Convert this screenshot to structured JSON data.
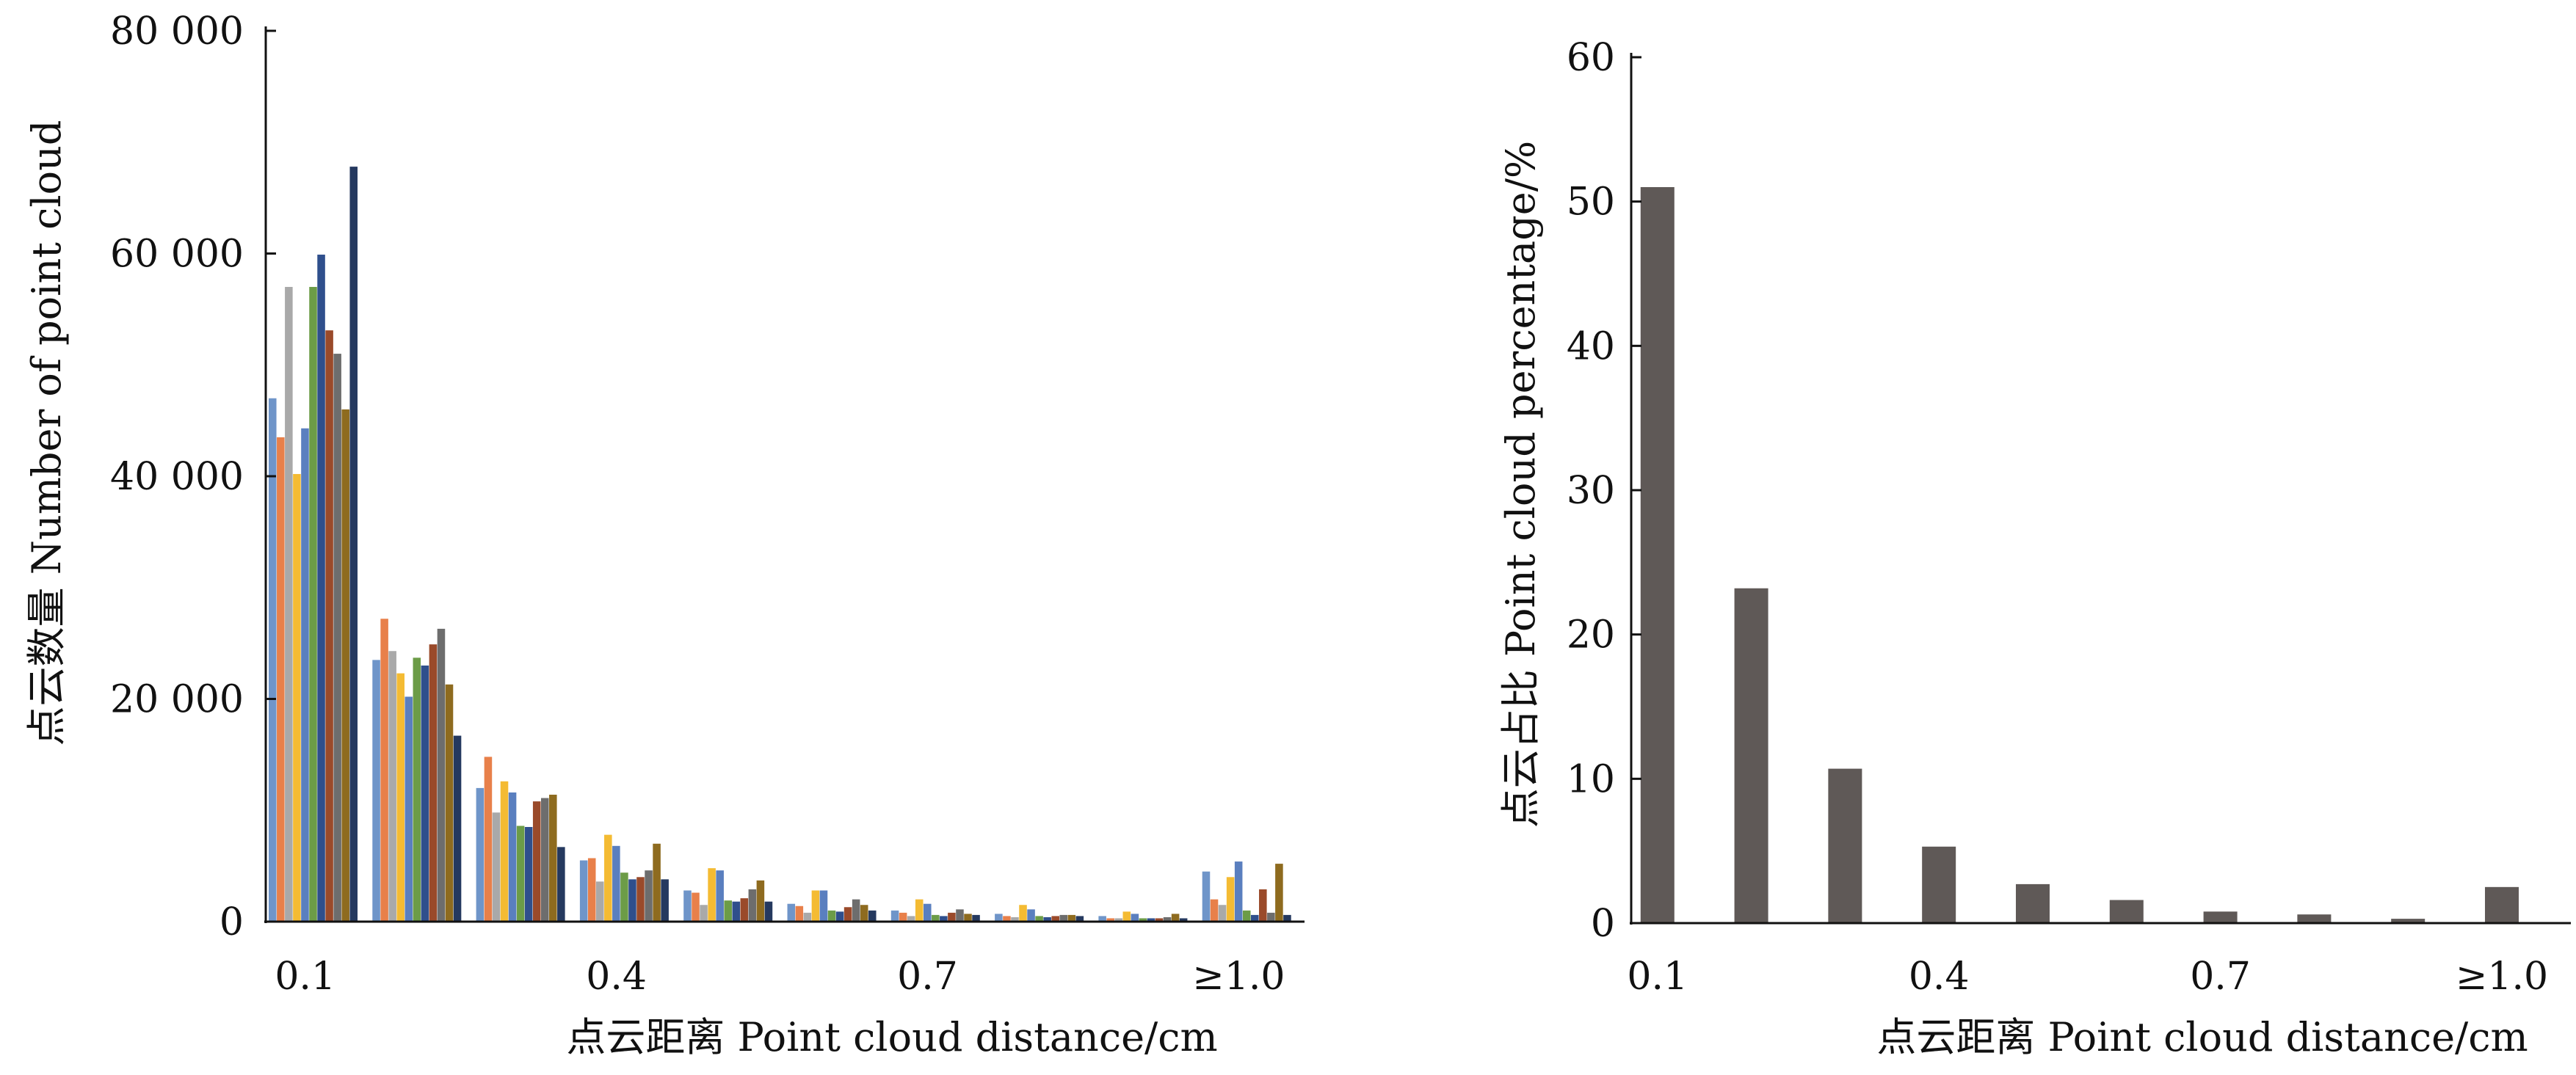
{
  "chart_data": [
    {
      "type": "bar",
      "categories": [
        "0.1",
        "0.2",
        "0.3",
        "0.4",
        "0.5",
        "0.6",
        "0.7",
        "0.8",
        "0.9",
        "≥1.0"
      ],
      "x_tick_labels": [
        "0.1",
        "0.4",
        "0.7",
        "≥1.0"
      ],
      "xlabel": "点云距离 Point cloud distance/cm",
      "ylabel": "点云数量 Number of point cloud",
      "ylim": [
        0,
        80000
      ],
      "y_ticks": [
        0,
        20000,
        40000,
        60000,
        80000
      ],
      "y_tick_labels": [
        "0",
        "20 000",
        "40 000",
        "60 000",
        "80 000"
      ],
      "grid": false,
      "series": [
        {
          "color": "#6f95c9",
          "values": [
            47000,
            23500,
            12000,
            5500,
            2800,
            1600,
            1000,
            700,
            500,
            4500
          ]
        },
        {
          "color": "#e8804a",
          "values": [
            43500,
            27200,
            14800,
            5700,
            2600,
            1400,
            800,
            500,
            300,
            2000
          ]
        },
        {
          "color": "#a9a9a9",
          "values": [
            57000,
            24300,
            9800,
            3600,
            1500,
            800,
            500,
            400,
            300,
            1500
          ]
        },
        {
          "color": "#f4bb33",
          "values": [
            40200,
            22300,
            12600,
            7800,
            4800,
            2800,
            2000,
            1500,
            900,
            4000
          ]
        },
        {
          "color": "#5a7fbf",
          "values": [
            44300,
            20200,
            11600,
            6800,
            4600,
            2800,
            1600,
            1100,
            700,
            5400
          ]
        },
        {
          "color": "#6c9c47",
          "values": [
            57000,
            23700,
            8600,
            4400,
            1900,
            1000,
            600,
            500,
            300,
            1000
          ]
        },
        {
          "color": "#2f4f8c",
          "values": [
            59900,
            23000,
            8500,
            3800,
            1800,
            900,
            500,
            400,
            300,
            600
          ]
        },
        {
          "color": "#9a4a2a",
          "values": [
            53100,
            24900,
            10800,
            4000,
            2100,
            1300,
            800,
            500,
            300,
            2900
          ]
        },
        {
          "color": "#6d6d6d",
          "values": [
            51000,
            26300,
            11100,
            4600,
            2900,
            2000,
            1100,
            600,
            400,
            800
          ]
        },
        {
          "color": "#8e6b1f",
          "values": [
            46000,
            21300,
            11400,
            7000,
            3700,
            1500,
            700,
            600,
            700,
            5200
          ]
        },
        {
          "color": "#25395f",
          "values": [
            67800,
            16700,
            6700,
            3800,
            1800,
            1000,
            600,
            500,
            300,
            600
          ]
        }
      ]
    },
    {
      "type": "bar",
      "categories": [
        "0.1",
        "0.2",
        "0.3",
        "0.4",
        "0.5",
        "0.6",
        "0.7",
        "0.8",
        "0.9",
        "≥1.0"
      ],
      "x_tick_labels": [
        "0.1",
        "0.4",
        "0.7",
        "≥1.0"
      ],
      "values": [
        51.0,
        23.2,
        10.7,
        5.3,
        2.7,
        1.6,
        0.8,
        0.6,
        0.3,
        2.5
      ],
      "xlabel": "点云距离 Point cloud distance/cm",
      "ylabel": "点云占比 Point cloud percentage/%",
      "ylim": [
        0,
        60
      ],
      "y_ticks": [
        0,
        10,
        20,
        30,
        40,
        50,
        60
      ],
      "y_tick_labels": [
        "0",
        "10",
        "20",
        "30",
        "40",
        "50",
        "60"
      ],
      "color": "#5f5957",
      "grid": false
    }
  ]
}
